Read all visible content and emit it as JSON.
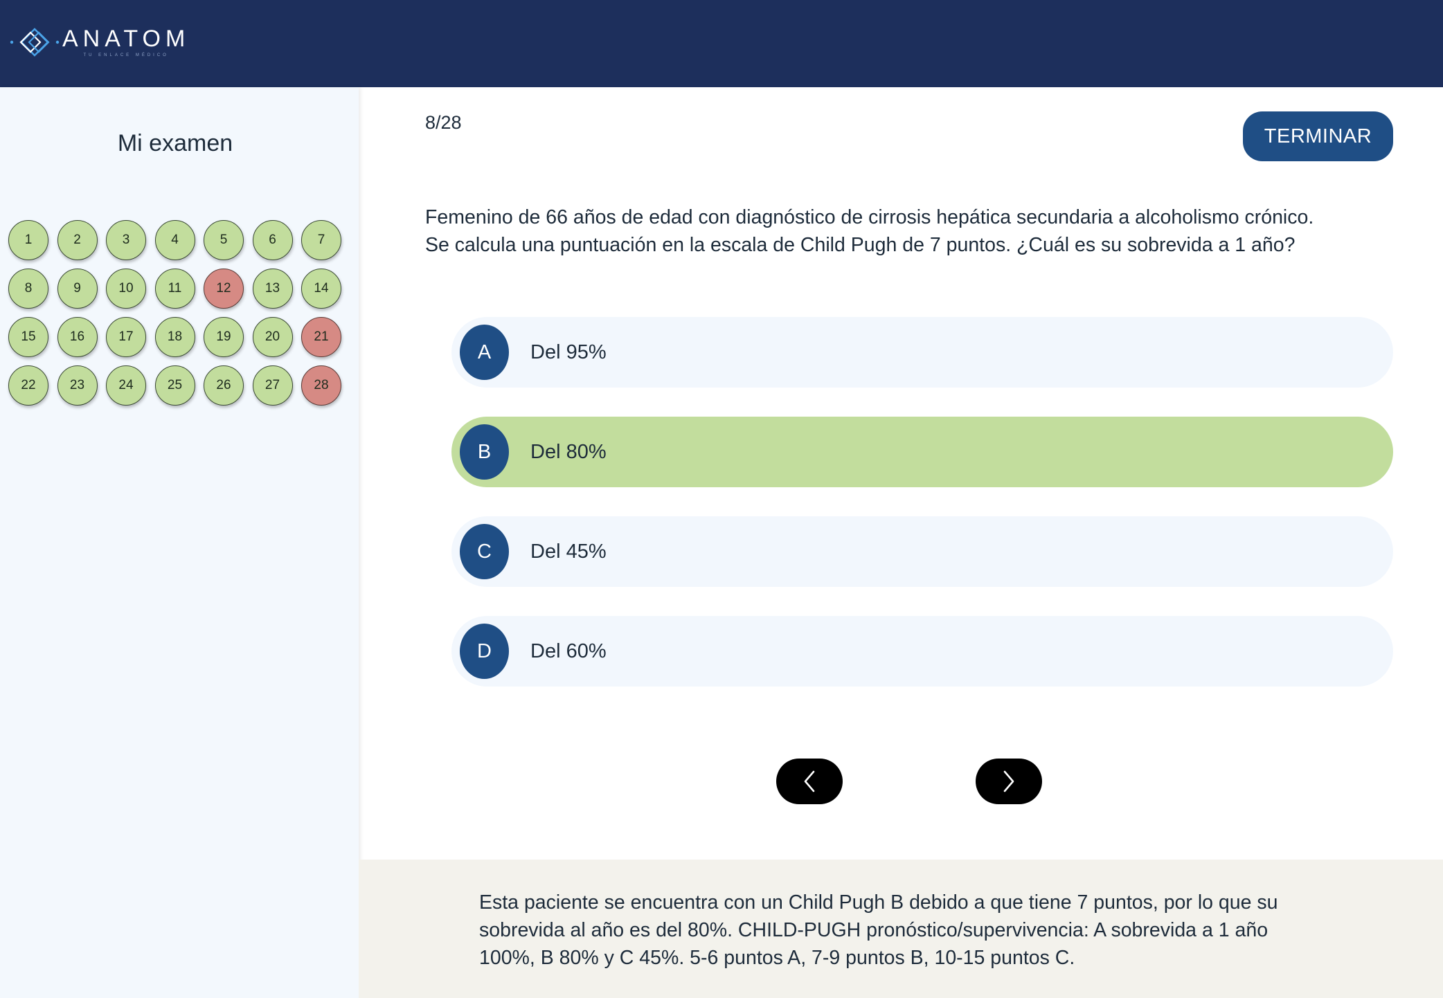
{
  "header": {
    "logo_text": "ANATOM",
    "logo_subtext": "TU ENLACE MÉDICO",
    "colors": {
      "background": "#1d2f5c",
      "logo_accent": "#4aa3e8"
    }
  },
  "sidebar": {
    "title": "Mi examen",
    "questions": [
      {
        "n": "1",
        "status": "correct"
      },
      {
        "n": "2",
        "status": "correct"
      },
      {
        "n": "3",
        "status": "correct"
      },
      {
        "n": "4",
        "status": "correct"
      },
      {
        "n": "5",
        "status": "correct"
      },
      {
        "n": "6",
        "status": "correct"
      },
      {
        "n": "7",
        "status": "correct"
      },
      {
        "n": "8",
        "status": "correct"
      },
      {
        "n": "9",
        "status": "correct"
      },
      {
        "n": "10",
        "status": "correct"
      },
      {
        "n": "11",
        "status": "correct"
      },
      {
        "n": "12",
        "status": "wrong"
      },
      {
        "n": "13",
        "status": "correct"
      },
      {
        "n": "14",
        "status": "correct"
      },
      {
        "n": "15",
        "status": "correct"
      },
      {
        "n": "16",
        "status": "correct"
      },
      {
        "n": "17",
        "status": "correct"
      },
      {
        "n": "18",
        "status": "correct"
      },
      {
        "n": "19",
        "status": "correct"
      },
      {
        "n": "20",
        "status": "correct"
      },
      {
        "n": "21",
        "status": "wrong"
      },
      {
        "n": "22",
        "status": "correct"
      },
      {
        "n": "23",
        "status": "correct"
      },
      {
        "n": "24",
        "status": "correct"
      },
      {
        "n": "25",
        "status": "correct"
      },
      {
        "n": "26",
        "status": "correct"
      },
      {
        "n": "27",
        "status": "correct"
      },
      {
        "n": "28",
        "status": "wrong"
      }
    ],
    "colors": {
      "correct": "#c2dd9d",
      "wrong": "#d68a84"
    }
  },
  "main": {
    "counter": "8/28",
    "finish_label": "TERMINAR",
    "question_lines": [
      "Femenino de 66 años de edad con diagnóstico de cirrosis hepática secundaria a alcoholismo crónico.",
      "Se calcula una puntuación en la escala de Child Pugh de 7 puntos. ¿Cuál es su sobrevida a 1 año?"
    ],
    "options": [
      {
        "letter": "A",
        "text": "Del 95%",
        "selected": false
      },
      {
        "letter": "B",
        "text": "Del 80%",
        "selected": true
      },
      {
        "letter": "C",
        "text": "Del 45%",
        "selected": false
      },
      {
        "letter": "D",
        "text": "Del 60%",
        "selected": false
      }
    ],
    "nav": {
      "prev_icon": "chevron-left-icon",
      "next_icon": "chevron-right-icon"
    },
    "colors": {
      "accent": "#1f4e85",
      "selected": "#c2dd9d",
      "option_bg": "#f2f7fd"
    }
  },
  "explanation": {
    "lines": [
      "Esta paciente se encuentra con un Child Pugh B debido a que tiene 7 puntos, por lo que su",
      "sobrevida al año es del 80%.  CHILD-PUGH pronóstico/supervivencia:  A sobrevida a 1 año",
      "100%, B 80% y C 45%. 5-6 puntos A, 7-9 puntos B, 10-15 puntos C."
    ]
  }
}
